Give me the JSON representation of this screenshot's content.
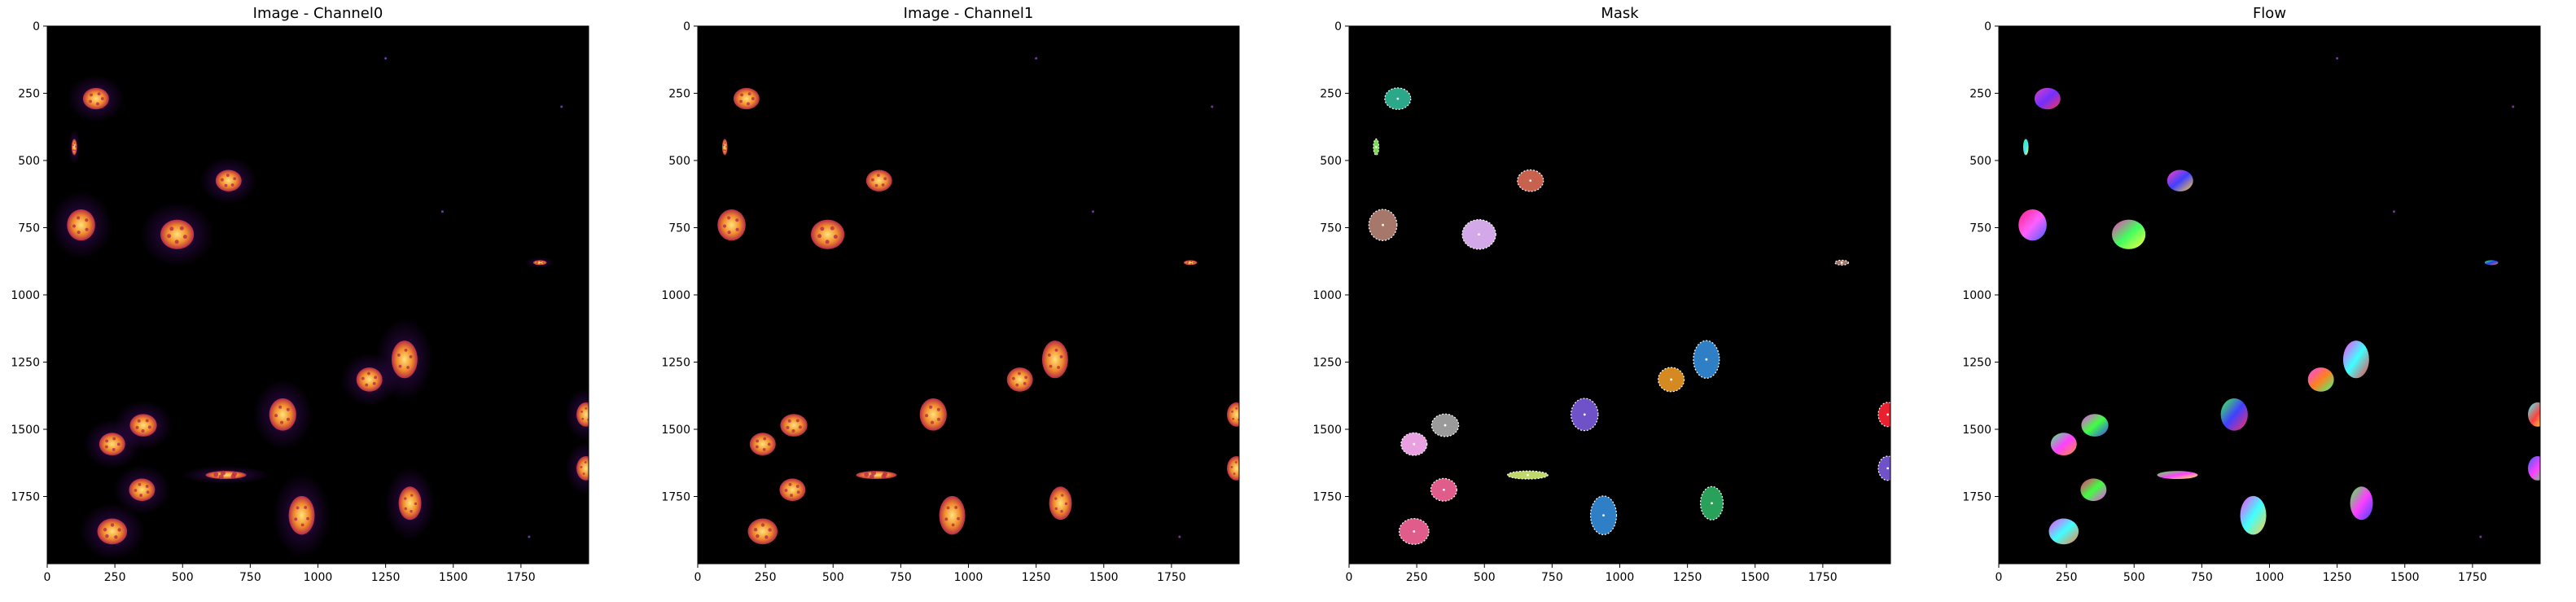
{
  "figure": {
    "panels": [
      {
        "title": "Image - Channel0",
        "kind": "fluorescence"
      },
      {
        "title": "Image - Channel1",
        "kind": "fluorescence"
      },
      {
        "title": "Mask",
        "kind": "mask"
      },
      {
        "title": "Flow",
        "kind": "flow"
      }
    ],
    "axes": {
      "xlim": [
        0,
        2000
      ],
      "ylim": [
        2000,
        0
      ],
      "xticks": [
        "0",
        "250",
        "500",
        "750",
        "1000",
        "1250",
        "1500",
        "1750"
      ],
      "yticks": [
        "250",
        "500",
        "750",
        "1000",
        "1250",
        "1500",
        "1750"
      ]
    },
    "colors": {
      "background": "#000000",
      "nucleus_core": "#ffe27a",
      "nucleus_mid": "#f08a2a",
      "nucleus_edge": "#b62b4a",
      "cytoplasm_glow": "#3a0a5a"
    },
    "cells": [
      {
        "x": 180,
        "y": 270,
        "rx": 48,
        "ry": 40,
        "mask": "#2aa889",
        "flow": [
          "#e040c0",
          "#7030ff",
          "#ff3050"
        ]
      },
      {
        "x": 100,
        "y": 450,
        "rx": 10,
        "ry": 30,
        "mask": "#7ed957",
        "flow": [
          "#40ff80",
          "#40e0ff",
          "#ffff40"
        ]
      },
      {
        "x": 670,
        "y": 575,
        "rx": 48,
        "ry": 40,
        "mask": "#c8624e",
        "flow": [
          "#ff40c0",
          "#4040ff",
          "#ffd040"
        ]
      },
      {
        "x": 125,
        "y": 740,
        "rx": 52,
        "ry": 58,
        "mask": "#a6786c",
        "flow": [
          "#ff2080",
          "#ff60ff",
          "#4060ff"
        ]
      },
      {
        "x": 480,
        "y": 775,
        "rx": 62,
        "ry": 55,
        "mask": "#d3a8e8",
        "flow": [
          "#ff30c0",
          "#40ff60",
          "#ffff40"
        ]
      },
      {
        "x": 1820,
        "y": 880,
        "rx": 25,
        "ry": 9,
        "mask": "#a6786c",
        "flow": [
          "#40ff40",
          "#2040ff",
          "#ff8040"
        ]
      },
      {
        "x": 1320,
        "y": 1240,
        "rx": 48,
        "ry": 70,
        "mask": "#2f7fc6",
        "flow": [
          "#ff40ff",
          "#40ffff",
          "#ff4040"
        ]
      },
      {
        "x": 1190,
        "y": 1315,
        "rx": 48,
        "ry": 45,
        "mask": "#d48a20",
        "flow": [
          "#ff40ff",
          "#ff8020",
          "#40ff80"
        ]
      },
      {
        "x": 870,
        "y": 1445,
        "rx": 50,
        "ry": 60,
        "mask": "#7052c8",
        "flow": [
          "#40ff40",
          "#4040ff",
          "#ff3060"
        ]
      },
      {
        "x": 355,
        "y": 1485,
        "rx": 50,
        "ry": 42,
        "mask": "#9a9a9a",
        "flow": [
          "#ff40ff",
          "#40ff40",
          "#4040ff"
        ]
      },
      {
        "x": 240,
        "y": 1555,
        "rx": 48,
        "ry": 42,
        "mask": "#e8a0e0",
        "flow": [
          "#40ff80",
          "#ff40ff",
          "#ff9030"
        ]
      },
      {
        "x": 1990,
        "y": 1445,
        "rx": 35,
        "ry": 45,
        "mask": "#e82030",
        "flow": [
          "#40ffff",
          "#ff4040",
          "#ffff40"
        ]
      },
      {
        "x": 1990,
        "y": 1645,
        "rx": 35,
        "ry": 45,
        "mask": "#7052c8",
        "flow": [
          "#4060ff",
          "#ff40ff",
          "#40ff40"
        ]
      },
      {
        "x": 350,
        "y": 1725,
        "rx": 48,
        "ry": 42,
        "mask": "#e05c8a",
        "flow": [
          "#ff2080",
          "#40ff40",
          "#ff40ff"
        ]
      },
      {
        "x": 940,
        "y": 1820,
        "rx": 48,
        "ry": 72,
        "mask": "#2f7fc6",
        "flow": [
          "#ff40ff",
          "#40ffff",
          "#ffd040"
        ]
      },
      {
        "x": 1340,
        "y": 1775,
        "rx": 42,
        "ry": 62,
        "mask": "#2aa15a",
        "flow": [
          "#40ff40",
          "#ff40ff",
          "#4040ff"
        ]
      },
      {
        "x": 240,
        "y": 1880,
        "rx": 55,
        "ry": 48,
        "mask": "#e05c8a",
        "flow": [
          "#ff40ff",
          "#40ffff",
          "#ff8040"
        ]
      },
      {
        "x": 660,
        "y": 1670,
        "rx": 75,
        "ry": 15,
        "mask": "#c0d86a",
        "flow": [
          "#40ff40",
          "#ff40ff",
          "#ffff40"
        ]
      }
    ]
  }
}
